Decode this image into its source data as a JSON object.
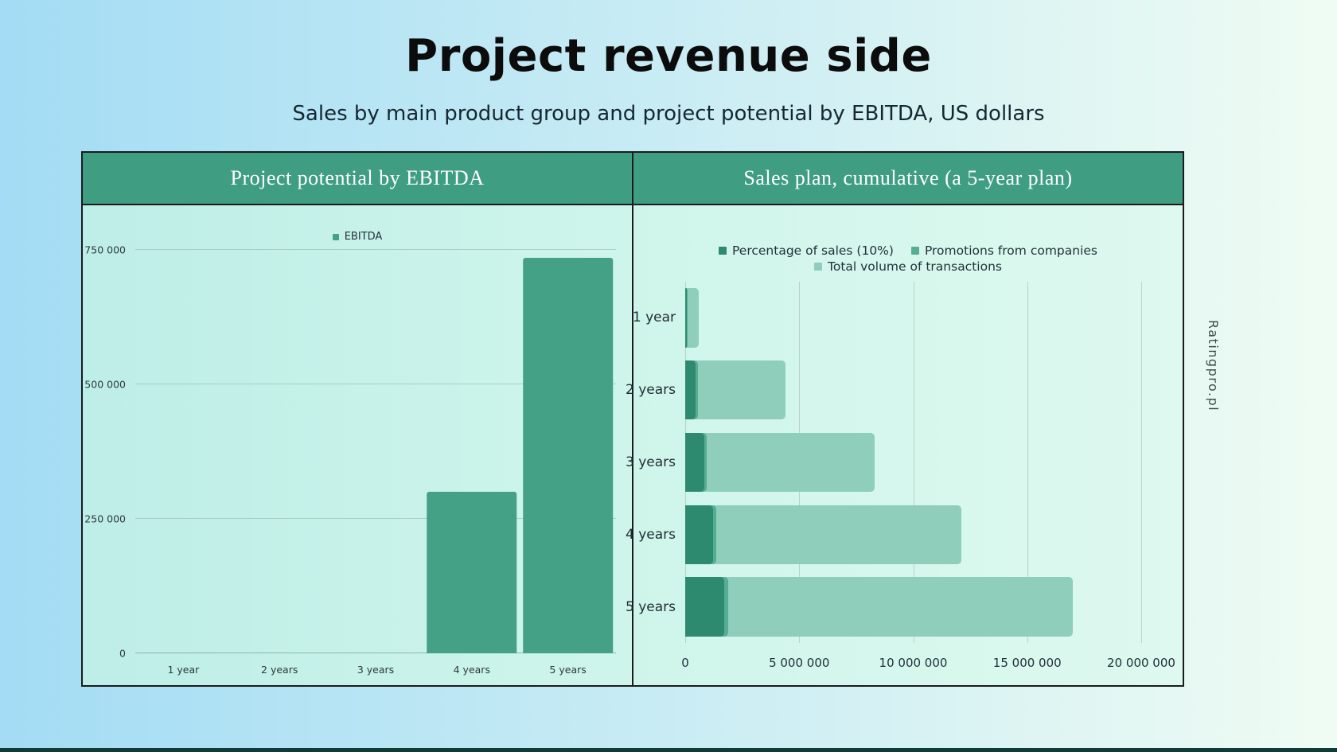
{
  "page": {
    "title": "Project revenue side",
    "subtitle": "Sales by main product group and project potential by EBITDA, US dollars",
    "watermark": "Ratingpro.pl"
  },
  "theme": {
    "header_bg": "#3f9e82",
    "panel_border": "#1b1b1b",
    "bg_left": "#a3dcf4",
    "bg_right": "#effcf3",
    "series_dark": "#2e8a6e",
    "series_medium": "#57ad92",
    "series_light": "#8fceba",
    "ebitda_bar": "#44a186"
  },
  "panels": {
    "left": {
      "header": "Project potential by EBITDA"
    },
    "right": {
      "header": "Sales plan, cumulative (a 5-year plan)"
    }
  },
  "chart_data": [
    {
      "type": "bar",
      "title": "Project potential by EBITDA",
      "legend": [
        "EBITDA"
      ],
      "categories": [
        "1 year",
        "2 years",
        "3 years",
        "4 years",
        "5 years"
      ],
      "values": [
        0,
        0,
        0,
        300000,
        735000
      ],
      "xlabel": "",
      "ylabel": "",
      "ylim": [
        0,
        750000
      ],
      "yticks": [
        0,
        250000,
        500000,
        750000
      ],
      "ytick_labels": [
        "0",
        "250 000",
        "500 000",
        "750 000"
      ],
      "grid": "horizontal",
      "legend_position": "top-center"
    },
    {
      "type": "bar",
      "orientation": "horizontal",
      "title": "Sales plan, cumulative (a 5-year plan)",
      "categories": [
        "1 year",
        "2 years",
        "3 years",
        "4 years",
        "5 years"
      ],
      "series": [
        {
          "name": "Percentage of sales (10%)",
          "values": [
            60000,
            440000,
            830000,
            1210000,
            1700000
          ]
        },
        {
          "name": "Promotions from companies",
          "values": [
            100000,
            550000,
            950000,
            1350000,
            1900000
          ]
        },
        {
          "name": "Total volume of transactions",
          "values": [
            600000,
            4400000,
            8300000,
            12100000,
            17000000
          ]
        }
      ],
      "xlim": [
        0,
        20000000
      ],
      "xticks": [
        0,
        5000000,
        10000000,
        15000000,
        20000000
      ],
      "xtick_labels": [
        "0",
        "5 000 000",
        "10 000 000",
        "15 000 000",
        "20 000 000"
      ],
      "grid": "vertical",
      "legend_position": "top-center"
    }
  ]
}
